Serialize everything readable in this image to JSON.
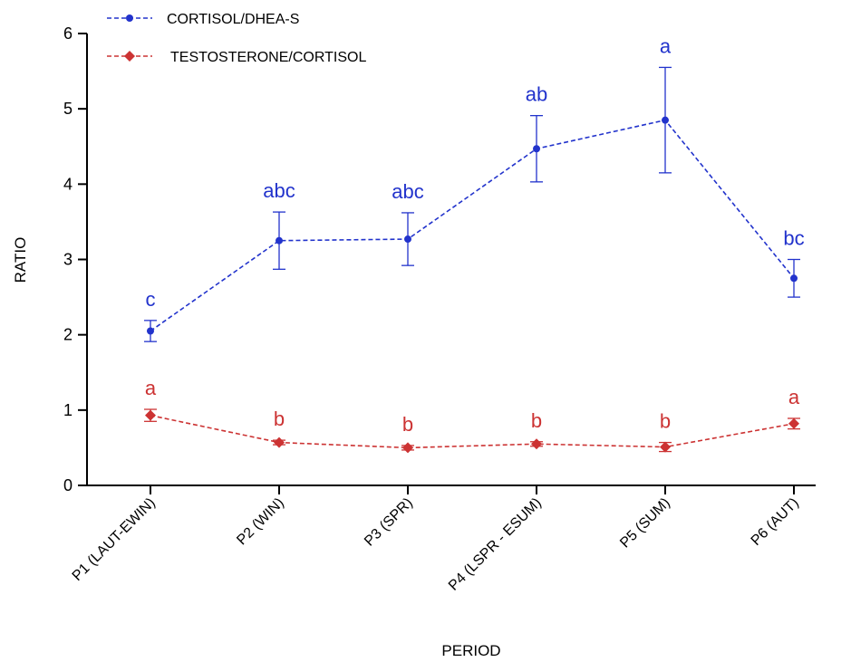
{
  "chart_data": {
    "type": "line",
    "xlabel": "PERIOD",
    "ylabel": "RATIO",
    "ylim": [
      0,
      6
    ],
    "yticks": [
      0,
      1,
      2,
      3,
      4,
      5,
      6
    ],
    "categories": [
      "P1 (LAUT-EWIN)",
      "P2 (WIN)",
      "P3 (SPR)",
      "P4 (LSPR - ESUM)",
      "P5 (SUM)",
      "P6 (AUT)"
    ],
    "grid": false,
    "legend_position": "top-left",
    "series": [
      {
        "name": "CORTISOL/DHEA-S",
        "color": "#2233cc",
        "marker": "circle",
        "line_style": "dashed",
        "values": [
          2.05,
          3.25,
          3.27,
          4.47,
          4.85,
          2.75
        ],
        "error": [
          0.14,
          0.38,
          0.35,
          0.44,
          0.7,
          0.25
        ],
        "significance_labels": [
          "c",
          "abc",
          "abc",
          "ab",
          "a",
          "bc"
        ]
      },
      {
        "name": "TESTOSTERONE/CORTISOL",
        "color": "#cc3333",
        "marker": "diamond",
        "line_style": "dashed",
        "values": [
          0.93,
          0.57,
          0.5,
          0.55,
          0.51,
          0.82
        ],
        "error": [
          0.08,
          0.03,
          0.03,
          0.03,
          0.06,
          0.07
        ],
        "significance_labels": [
          "a",
          "b",
          "b",
          "b",
          "b",
          "a"
        ]
      }
    ]
  }
}
